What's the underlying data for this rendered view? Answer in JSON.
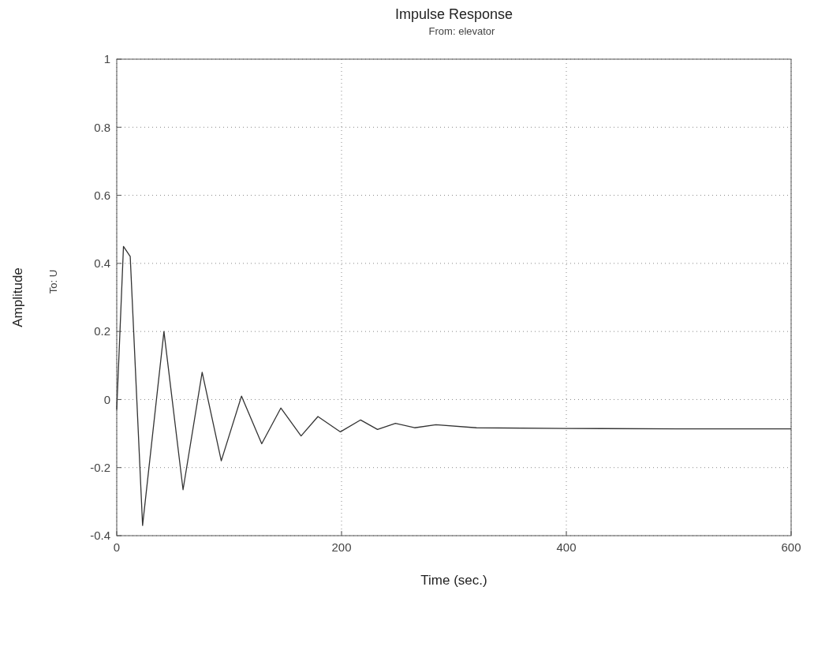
{
  "chart_data": {
    "type": "line",
    "title": "Impulse Response",
    "subtitle": "From: elevator",
    "xlabel": "Time (sec.)",
    "ylabel": "Amplitude",
    "y2label": "To: U",
    "xlim": [
      0,
      600
    ],
    "xticks": [
      0,
      200,
      400,
      600
    ],
    "ylim": [
      -0.4,
      1
    ],
    "yticks": [
      -0.4,
      -0.2,
      0,
      0.2,
      0.4,
      0.6,
      0.8,
      1
    ],
    "grid": true,
    "line_style": "solid",
    "series": [
      {
        "color": "#333333",
        "x": [
          0,
          6,
          12,
          23,
          42,
          59,
          76,
          93,
          111,
          129,
          146,
          164,
          179,
          199,
          217,
          232,
          248,
          265,
          284,
          320,
          400,
          500,
          600
        ],
        "values": [
          -0.03,
          0.45,
          0.42,
          -0.37,
          0.2,
          -0.265,
          0.08,
          -0.18,
          0.01,
          -0.13,
          -0.025,
          -0.107,
          -0.05,
          -0.095,
          -0.06,
          -0.088,
          -0.07,
          -0.083,
          -0.074,
          -0.083,
          -0.085,
          -0.086,
          -0.086
        ]
      }
    ]
  }
}
